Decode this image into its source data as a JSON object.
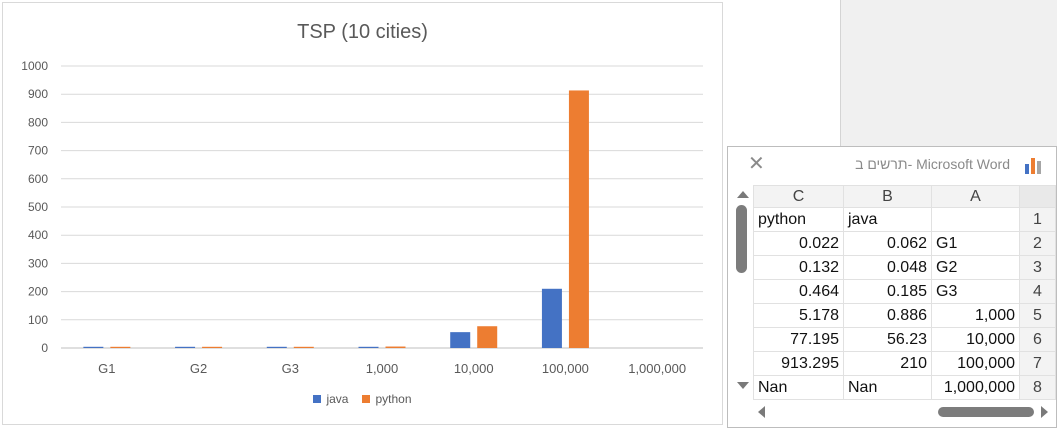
{
  "chart_data": {
    "type": "bar",
    "title": "TSP (10 cities)",
    "categories": [
      "G1",
      "G2",
      "G3",
      "1,000",
      "10,000",
      "100,000",
      "1,000,000"
    ],
    "series": [
      {
        "name": "java",
        "values": [
          0.062,
          0.048,
          0.185,
          0.886,
          56.23,
          210,
          null
        ]
      },
      {
        "name": "python",
        "values": [
          0.022,
          0.132,
          0.464,
          5.178,
          77.195,
          913.295,
          null
        ]
      }
    ],
    "ylim": [
      0,
      1000
    ],
    "yticks": [
      "0",
      "100",
      "200",
      "300",
      "400",
      "500",
      "600",
      "700",
      "800",
      "900",
      "1000"
    ],
    "grid": true,
    "legend": "bottom",
    "colors": {
      "java": "#4472c4",
      "python": "#ed7d31"
    }
  },
  "sheet": {
    "title": "תרשים ב- Microsoft Word",
    "columns": [
      "C",
      "B",
      "A"
    ],
    "rows": [
      {
        "num": "1",
        "c": "python",
        "b": "java",
        "a": ""
      },
      {
        "num": "2",
        "c": "0.022",
        "b": "0.062",
        "a": "G1"
      },
      {
        "num": "3",
        "c": "0.132",
        "b": "0.048",
        "a": "G2"
      },
      {
        "num": "4",
        "c": "0.464",
        "b": "0.185",
        "a": "G3"
      },
      {
        "num": "5",
        "c": "5.178",
        "b": "0.886",
        "a": "1,000"
      },
      {
        "num": "6",
        "c": "77.195",
        "b": "56.23",
        "a": "10,000"
      },
      {
        "num": "7",
        "c": "913.295",
        "b": "210",
        "a": "100,000"
      },
      {
        "num": "8",
        "c": "Nan",
        "b": "Nan",
        "a": "1,000,000"
      }
    ]
  },
  "icons": {
    "close": "close-icon",
    "chart": "chart-app-icon"
  }
}
